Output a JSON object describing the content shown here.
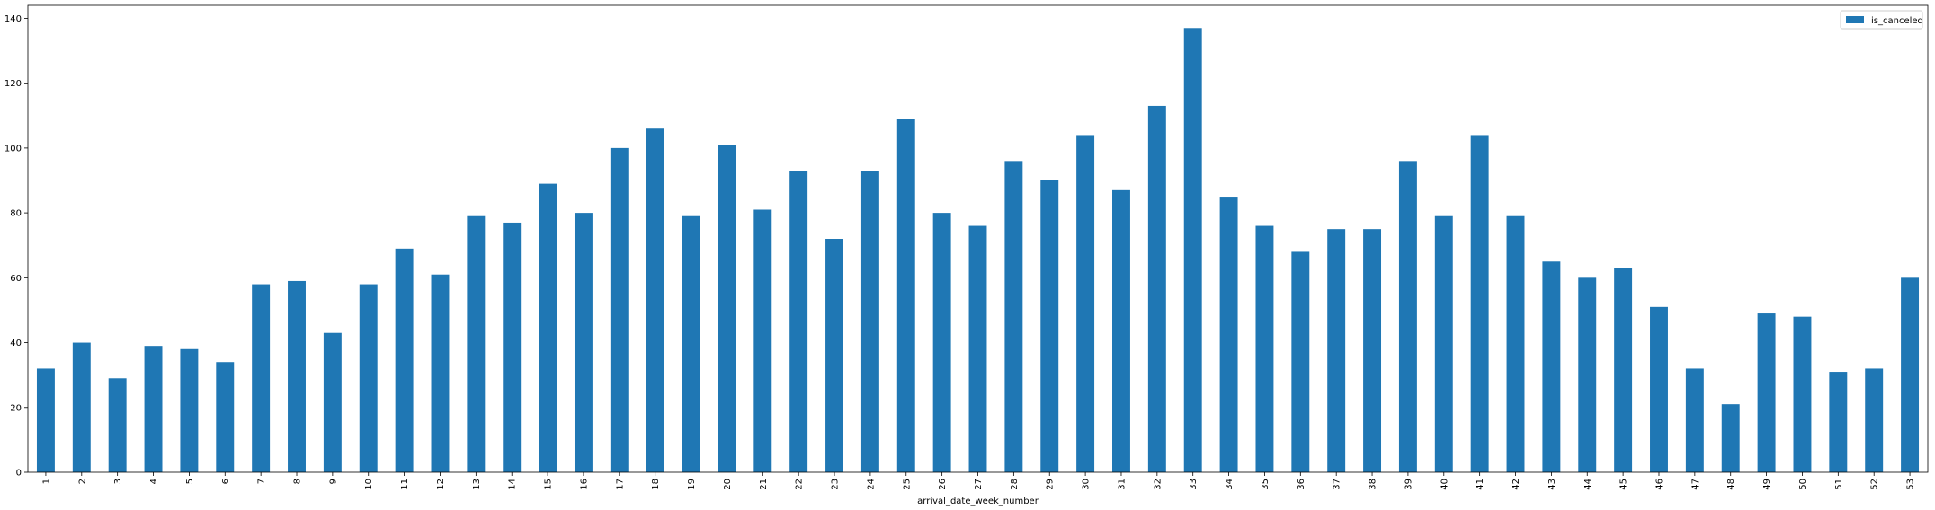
{
  "chart_data": {
    "type": "bar",
    "xlabel": "arrival_date_week_number",
    "ylabel": "",
    "ylim": [
      0,
      144
    ],
    "yticks": [
      0,
      20,
      40,
      60,
      80,
      100,
      120,
      140
    ],
    "legend_position": "top-right",
    "grid": false,
    "categories": [
      "1",
      "2",
      "3",
      "4",
      "5",
      "6",
      "7",
      "8",
      "9",
      "10",
      "11",
      "12",
      "13",
      "14",
      "15",
      "16",
      "17",
      "18",
      "19",
      "20",
      "21",
      "22",
      "23",
      "24",
      "25",
      "26",
      "27",
      "28",
      "29",
      "30",
      "31",
      "32",
      "33",
      "34",
      "35",
      "36",
      "37",
      "38",
      "39",
      "40",
      "41",
      "42",
      "43",
      "44",
      "45",
      "46",
      "47",
      "48",
      "49",
      "50",
      "51",
      "52",
      "53"
    ],
    "series": [
      {
        "name": "is_canceled",
        "color": "#1f77b4",
        "values": [
          32,
          40,
          29,
          39,
          38,
          34,
          58,
          59,
          43,
          58,
          69,
          61,
          79,
          77,
          89,
          80,
          100,
          106,
          79,
          101,
          81,
          93,
          72,
          93,
          109,
          80,
          76,
          96,
          90,
          104,
          87,
          113,
          137,
          85,
          76,
          68,
          75,
          75,
          96,
          79,
          104,
          79,
          65,
          60,
          63,
          51,
          32,
          21,
          49,
          48,
          31,
          32,
          60
        ]
      }
    ]
  }
}
